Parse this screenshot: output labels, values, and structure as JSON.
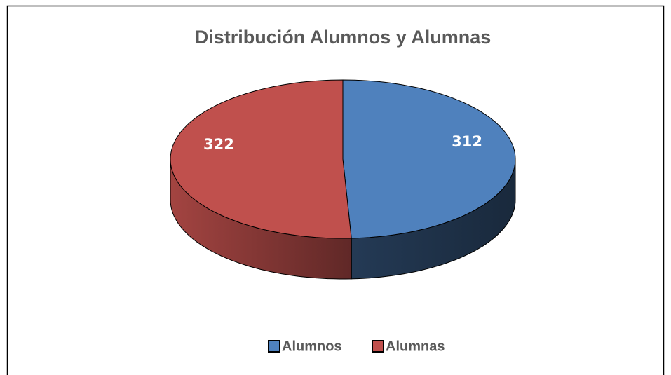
{
  "chart_data": {
    "type": "pie3d",
    "title": "Distribución Alumnos y Alumnas",
    "categories": [
      "Alumnos",
      "Alumnas"
    ],
    "values": [
      312,
      322
    ],
    "colors": [
      "#4f81bd",
      "#c0504d"
    ],
    "legend": "bottom"
  }
}
